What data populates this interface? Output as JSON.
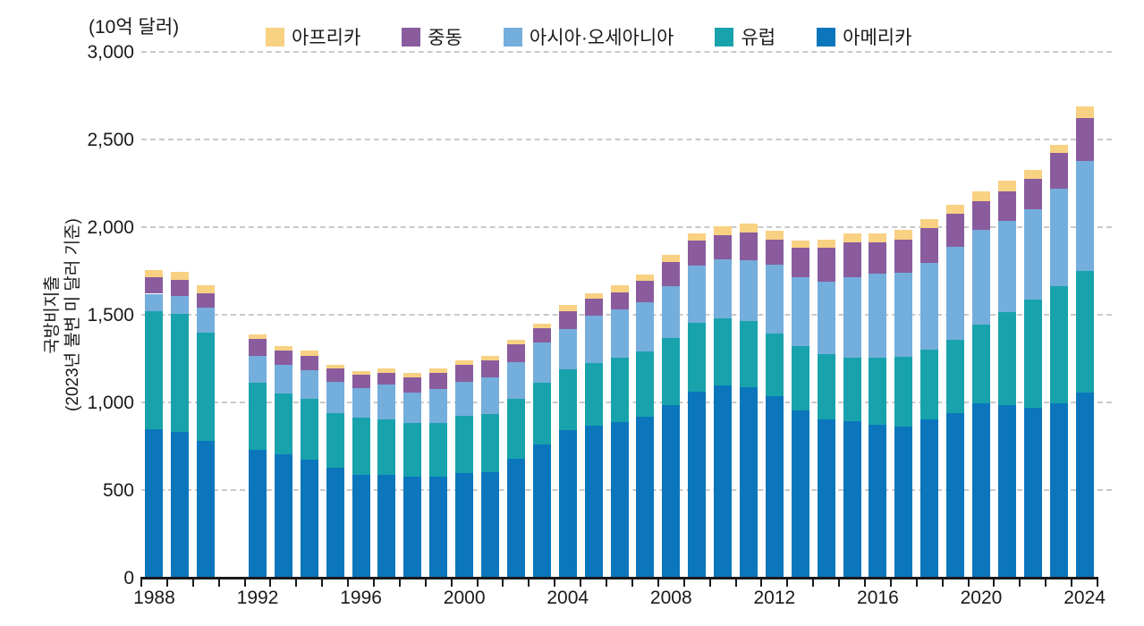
{
  "unit_label": "(10억 달러)",
  "y_axis_title": {
    "line1": "국방비지출",
    "line2": "(2023년 불변 미 달러 기준)"
  },
  "legend": {
    "items": [
      {
        "label": "아프리카",
        "color": "#f8d183"
      },
      {
        "label": "중동",
        "color": "#8a5c9e"
      },
      {
        "label": "아시아·오세아니아",
        "color": "#74aedc"
      },
      {
        "label": "유럽",
        "color": "#18a3ac"
      },
      {
        "label": "아메리카",
        "color": "#0b76bc"
      }
    ]
  },
  "colors": {
    "gridline": "#c9c9c9",
    "axis": "#1a1a1a",
    "text": "#1a1a1a"
  },
  "chart_data": {
    "type": "bar",
    "stacked": true,
    "title": "",
    "xlabel": "",
    "ylabel": "국방비지출 (2023년 불변 미 달러 기준)",
    "unit": "10억 달러",
    "ylim": [
      0,
      3000
    ],
    "y_ticks": [
      0,
      500,
      1000,
      1500,
      2000,
      2500,
      3000
    ],
    "y_tick_labels": [
      "0",
      "500",
      "1,000",
      "1,500",
      "2,000",
      "2,500",
      "3,000"
    ],
    "grid": "dashed-horizontal",
    "legend_position": "top",
    "x": [
      1988,
      1989,
      1990,
      1991,
      1992,
      1993,
      1994,
      1995,
      1996,
      1997,
      1998,
      1999,
      2000,
      2001,
      2002,
      2003,
      2004,
      2005,
      2006,
      2007,
      2008,
      2009,
      2010,
      2011,
      2012,
      2013,
      2014,
      2015,
      2016,
      2017,
      2018,
      2019,
      2020,
      2021,
      2022,
      2023,
      2024
    ],
    "x_tick_labels": [
      "1988",
      "1992",
      "1996",
      "2000",
      "2004",
      "2008",
      "2012",
      "2016",
      "2020",
      "2024"
    ],
    "note": "no bar for 1991 (null values)",
    "series": [
      {
        "name": "아메리카",
        "color": "#0b76bc",
        "values": [
          845,
          830,
          780,
          null,
          730,
          702,
          673,
          626,
          587,
          587,
          575,
          575,
          595,
          600,
          680,
          759,
          842,
          867,
          889,
          918,
          986,
          1060,
          1099,
          1088,
          1037,
          952,
          901,
          894,
          872,
          864,
          901,
          940,
          995,
          983,
          969,
          996,
          1055
        ]
      },
      {
        "name": "유럽",
        "color": "#18a3ac",
        "values": [
          675,
          675,
          620,
          null,
          380,
          349,
          347,
          314,
          328,
          314,
          309,
          309,
          328,
          335,
          340,
          352,
          345,
          357,
          366,
          371,
          380,
          392,
          381,
          375,
          357,
          371,
          375,
          361,
          383,
          394,
          402,
          417,
          447,
          530,
          620,
          668,
          693
        ]
      },
      {
        "name": "아시아·오세아니아",
        "color": "#74aedc",
        "values": [
          100,
          100,
          140,
          null,
          156,
          165,
          164,
          179,
          167,
          201,
          172,
          193,
          196,
          210,
          210,
          229,
          233,
          269,
          276,
          281,
          297,
          328,
          336,
          350,
          392,
          391,
          413,
          459,
          480,
          482,
          491,
          531,
          541,
          525,
          515,
          558,
          630
        ]
      },
      {
        "name": "중동",
        "color": "#8a5c9e",
        "values": [
          95,
          95,
          82,
          null,
          95,
          78,
          83,
          73,
          75,
          68,
          89,
          93,
          97,
          96,
          102,
          85,
          102,
          97,
          98,
          122,
          140,
          142,
          136,
          156,
          144,
          167,
          192,
          199,
          180,
          187,
          201,
          187,
          165,
          168,
          172,
          203,
          246
        ]
      },
      {
        "name": "아프리카",
        "color": "#f8d183",
        "values": [
          42,
          45,
          45,
          null,
          29,
          29,
          27,
          24,
          22,
          26,
          25,
          26,
          22,
          26,
          25,
          26,
          34,
          34,
          38,
          39,
          39,
          44,
          52,
          51,
          48,
          41,
          46,
          53,
          51,
          56,
          51,
          51,
          56,
          60,
          50,
          46,
          65
        ]
      }
    ]
  }
}
